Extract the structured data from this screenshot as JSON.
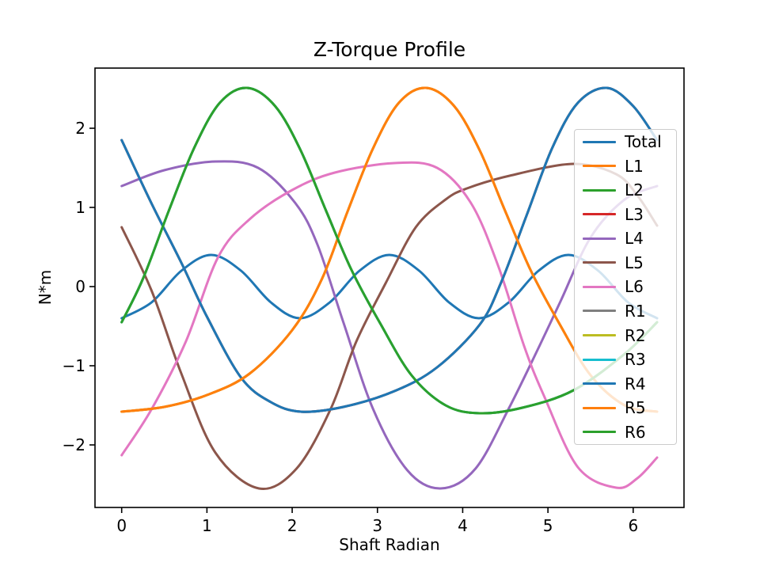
{
  "chart_data": {
    "type": "line",
    "title": "Z-Torque Profile",
    "xlabel": "Shaft Radian",
    "ylabel": "N*m",
    "xlim": [
      -0.313,
      6.596
    ],
    "ylim": [
      -2.79,
      2.76
    ],
    "xtick_values": [
      0,
      1,
      2,
      3,
      4,
      5,
      6
    ],
    "ytick_values": [
      -2,
      -1,
      0,
      1,
      2
    ],
    "grid": false,
    "legend_position": "upper-right-inside",
    "background": "#ffffff",
    "spine_color": "#000000",
    "traces": {
      "total": [
        [
          0,
          -0.4
        ],
        [
          0.35,
          -0.2
        ],
        [
          0.7,
          0.2
        ],
        [
          1.05,
          0.4
        ],
        [
          1.4,
          0.2
        ],
        [
          1.75,
          -0.2
        ],
        [
          2.09,
          -0.4
        ],
        [
          2.44,
          -0.2
        ],
        [
          2.79,
          0.2
        ],
        [
          3.14,
          0.4
        ],
        [
          3.49,
          0.2
        ],
        [
          3.84,
          -0.2
        ],
        [
          4.19,
          -0.4
        ],
        [
          4.54,
          -0.2
        ],
        [
          4.89,
          0.2
        ],
        [
          5.24,
          0.4
        ],
        [
          5.59,
          0.2
        ],
        [
          5.94,
          -0.2
        ],
        [
          6.28,
          -0.4
        ]
      ],
      "crest_150": [
        [
          0,
          -0.45
        ],
        [
          0.25,
          0.1
        ],
        [
          0.55,
          0.95
        ],
        [
          0.85,
          1.75
        ],
        [
          1.15,
          2.32
        ],
        [
          1.47,
          2.51
        ],
        [
          1.8,
          2.28
        ],
        [
          2.1,
          1.72
        ],
        [
          2.4,
          0.95
        ],
        [
          2.7,
          0.2
        ],
        [
          3.03,
          -0.46
        ],
        [
          3.4,
          -1.12
        ],
        [
          3.8,
          -1.5
        ],
        [
          4.2,
          -1.6
        ],
        [
          4.7,
          -1.53
        ],
        [
          5.3,
          -1.31
        ],
        [
          5.9,
          -0.85
        ],
        [
          6.28,
          -0.45
        ]
      ],
      "crest_357": [
        [
          0,
          -1.58
        ],
        [
          0.5,
          -1.52
        ],
        [
          1.0,
          -1.37
        ],
        [
          1.5,
          -1.1
        ],
        [
          2.0,
          -0.55
        ],
        [
          2.35,
          0.1
        ],
        [
          2.65,
          0.95
        ],
        [
          2.95,
          1.75
        ],
        [
          3.25,
          2.32
        ],
        [
          3.57,
          2.51
        ],
        [
          3.9,
          2.28
        ],
        [
          4.2,
          1.72
        ],
        [
          4.5,
          0.95
        ],
        [
          4.8,
          0.2
        ],
        [
          5.13,
          -0.46
        ],
        [
          5.5,
          -1.12
        ],
        [
          5.9,
          -1.5
        ],
        [
          6.28,
          -1.58
        ]
      ],
      "crest_569": [
        [
          0,
          1.85
        ],
        [
          0.35,
          1.05
        ],
        [
          0.7,
          0.3
        ],
        [
          1.0,
          -0.38
        ],
        [
          1.4,
          -1.15
        ],
        [
          1.75,
          -1.46
        ],
        [
          2.1,
          -1.58
        ],
        [
          2.6,
          -1.52
        ],
        [
          3.2,
          -1.32
        ],
        [
          3.7,
          -1.02
        ],
        [
          4.2,
          -0.48
        ],
        [
          4.45,
          0.05
        ],
        [
          4.75,
          0.9
        ],
        [
          5.05,
          1.75
        ],
        [
          5.35,
          2.32
        ],
        [
          5.69,
          2.51
        ],
        [
          6.0,
          2.28
        ],
        [
          6.28,
          1.85
        ]
      ],
      "trough_161": [
        [
          0,
          0.75
        ],
        [
          0.35,
          -0.05
        ],
        [
          0.7,
          -1.1
        ],
        [
          1.1,
          -2.1
        ],
        [
          1.61,
          -2.55
        ],
        [
          2.05,
          -2.3
        ],
        [
          2.45,
          -1.55
        ],
        [
          2.75,
          -0.7
        ],
        [
          3.1,
          0.05
        ],
        [
          3.45,
          0.75
        ],
        [
          3.8,
          1.1
        ],
        [
          4.05,
          1.24
        ],
        [
          4.55,
          1.4
        ],
        [
          5.3,
          1.55
        ],
        [
          5.8,
          1.42
        ],
        [
          6.05,
          1.15
        ],
        [
          6.28,
          0.77
        ]
      ],
      "trough_374": [
        [
          0,
          1.27
        ],
        [
          0.5,
          1.47
        ],
        [
          1.1,
          1.58
        ],
        [
          1.6,
          1.5
        ],
        [
          2.04,
          1.05
        ],
        [
          2.3,
          0.52
        ],
        [
          2.6,
          -0.45
        ],
        [
          2.95,
          -1.55
        ],
        [
          3.35,
          -2.32
        ],
        [
          3.74,
          -2.55
        ],
        [
          4.15,
          -2.3
        ],
        [
          4.55,
          -1.52
        ],
        [
          4.9,
          -0.75
        ],
        [
          5.15,
          -0.18
        ],
        [
          5.5,
          0.62
        ],
        [
          5.9,
          1.1
        ],
        [
          6.28,
          1.27
        ]
      ],
      "trough_580": [
        [
          0,
          -2.13
        ],
        [
          0.35,
          -1.55
        ],
        [
          0.75,
          -0.7
        ],
        [
          1.13,
          0.37
        ],
        [
          1.5,
          0.85
        ],
        [
          2.0,
          1.22
        ],
        [
          2.5,
          1.44
        ],
        [
          3.2,
          1.56
        ],
        [
          3.7,
          1.5
        ],
        [
          4.1,
          1.05
        ],
        [
          4.42,
          0.25
        ],
        [
          4.72,
          -0.75
        ],
        [
          4.95,
          -1.37
        ],
        [
          5.35,
          -2.28
        ],
        [
          5.8,
          -2.54
        ],
        [
          6.05,
          -2.42
        ],
        [
          6.28,
          -2.16
        ]
      ]
    },
    "series": [
      {
        "name": "Total",
        "color": "#1f77b4",
        "trace": "total",
        "visible": true
      },
      {
        "name": "L1",
        "color": "#ff7f0e",
        "trace": "crest_357",
        "visible": true
      },
      {
        "name": "L2",
        "color": "#2ca02c",
        "trace": "crest_150",
        "visible": true
      },
      {
        "name": "L3",
        "color": "#d62728",
        "trace": "crest_569",
        "visible": false
      },
      {
        "name": "L4",
        "color": "#9467bd",
        "trace": "trough_374",
        "visible": true
      },
      {
        "name": "L5",
        "color": "#8c564b",
        "trace": "trough_161",
        "visible": true
      },
      {
        "name": "L6",
        "color": "#e377c2",
        "trace": "trough_580",
        "visible": true
      },
      {
        "name": "R1",
        "color": "#7f7f7f",
        "trace": "crest_569",
        "visible": false
      },
      {
        "name": "R2",
        "color": "#bcbd22",
        "trace": "crest_357",
        "visible": false
      },
      {
        "name": "R3",
        "color": "#17becf",
        "trace": "crest_150",
        "visible": false
      },
      {
        "name": "R4",
        "color": "#1f77b4",
        "trace": "crest_569",
        "visible": true
      },
      {
        "name": "R5",
        "color": "#ff7f0e",
        "trace": "crest_357",
        "visible": true
      },
      {
        "name": "R6",
        "color": "#2ca02c",
        "trace": "crest_150",
        "visible": true
      }
    ]
  }
}
